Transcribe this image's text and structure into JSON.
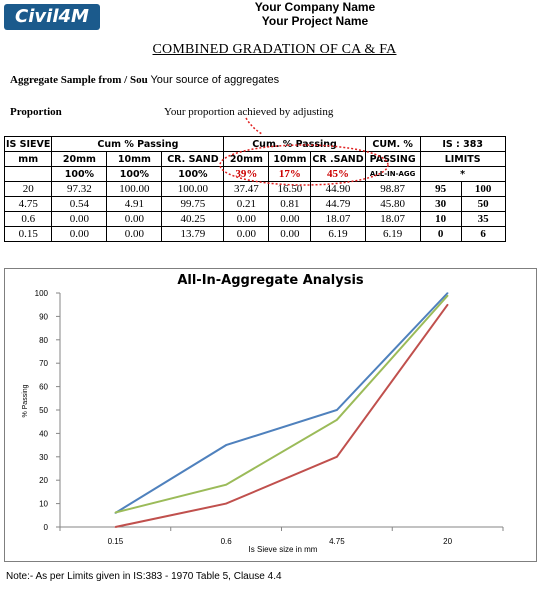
{
  "logo_text": "Civil4M",
  "header": {
    "company": "Your Company Name",
    "project": "Your Project Name"
  },
  "title": "COMBINED GRADATION OF CA & FA",
  "sample": {
    "label": "Aggregate Sample from / Sou",
    "value": "Your source of aggregates"
  },
  "proportion": {
    "label": "Proportion",
    "note": "Your proportion achieved by adjusting"
  },
  "table": {
    "h_sieve": "IS SIEVE",
    "h_cum1": "Cum % Passing",
    "h_cum2": "Cum. % Passing",
    "h_cum_pct": "CUM. %",
    "h_is": "IS : 383",
    "h_mm": "mm",
    "h_20mm": "20mm",
    "h_10mm": "10mm",
    "h_crsand": "CR. SAND",
    "h_20mm_b": "20mm",
    "h_10mm_b": "10mm",
    "h_crsand_b": "CR .SAND",
    "h_passing": "PASSING",
    "h_limits": "LIMITS",
    "p_20": "100%",
    "p_10": "100%",
    "p_sand": "100%",
    "prop_20": "39%",
    "prop_10": "17%",
    "prop_sand": "45%",
    "all_in": "ALL-IN-AGG",
    "star": "*",
    "rows": [
      {
        "sieve": "20",
        "p20": "97.32",
        "p10": "100.00",
        "psand": "100.00",
        "c20": "37.47",
        "c10": "16.50",
        "csand": "44.90",
        "total": "98.87",
        "lo": "95",
        "hi": "100"
      },
      {
        "sieve": "4.75",
        "p20": "0.54",
        "p10": "4.91",
        "psand": "99.75",
        "c20": "0.21",
        "c10": "0.81",
        "csand": "44.79",
        "total": "45.80",
        "lo": "30",
        "hi": "50"
      },
      {
        "sieve": "0.6",
        "p20": "0.00",
        "p10": "0.00",
        "psand": "40.25",
        "c20": "0.00",
        "c10": "0.00",
        "csand": "18.07",
        "total": "18.07",
        "lo": "10",
        "hi": "35"
      },
      {
        "sieve": "0.15",
        "p20": "0.00",
        "p10": "0.00",
        "psand": "13.79",
        "c20": "0.00",
        "c10": "0.00",
        "csand": "6.19",
        "total": "6.19",
        "lo": "0",
        "hi": "6"
      }
    ]
  },
  "chart_data": {
    "type": "line",
    "title": "All-In-Aggregate Analysis",
    "xlabel": "Is Sieve size in mm",
    "ylabel": "% Passing",
    "categories": [
      "0.15",
      "0.6",
      "4.75",
      "20"
    ],
    "ylim": [
      0,
      100
    ],
    "yticks": [
      "0",
      "10",
      "20",
      "30",
      "40",
      "50",
      "60",
      "70",
      "80",
      "90",
      "100"
    ],
    "grid": false,
    "series": [
      {
        "values": [
          6,
          35,
          50,
          100
        ],
        "color": "#4f81bd"
      },
      {
        "values": [
          6.19,
          18.07,
          45.8,
          98.87
        ],
        "color": "#9bbb59"
      },
      {
        "values": [
          0,
          10,
          30,
          95
        ],
        "color": "#c0504d"
      }
    ]
  },
  "note": "Note:- As per Limits given in IS:383 - 1970 Table 5, Clause 4.4"
}
